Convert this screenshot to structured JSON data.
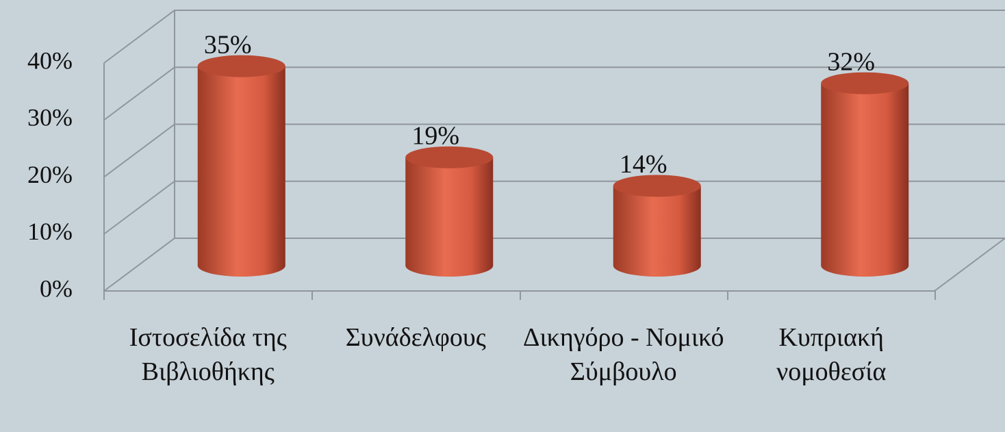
{
  "chart_data": {
    "type": "bar",
    "categories": [
      "Ιστοσελίδα της Βιβλιοθήκης",
      "Συνάδελφους",
      "Δικηγόρο - Νομικό Σύμβουλο",
      "Κυπριακή νομοθεσία"
    ],
    "values": [
      35,
      19,
      14,
      32
    ],
    "value_labels": [
      "35%",
      "19%",
      "14%",
      "32%"
    ],
    "color": "#e0654a",
    "ylim": [
      0,
      40
    ],
    "yticks": [
      {
        "value": 0,
        "label": "0%"
      },
      {
        "value": 10,
        "label": "10%"
      },
      {
        "value": 20,
        "label": "20%"
      },
      {
        "value": 30,
        "label": "30%"
      },
      {
        "value": 40,
        "label": "40%"
      }
    ],
    "grid": true
  }
}
